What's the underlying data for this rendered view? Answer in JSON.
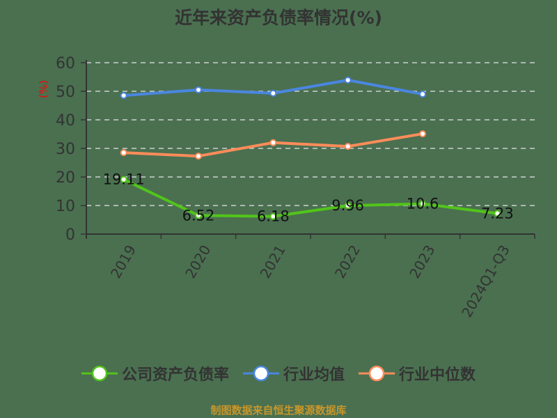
{
  "title": "近年来资产负债率情况(%)",
  "footer": "制图数据来自恒生聚源数据库",
  "colors": {
    "background": "#4a7050",
    "company": "#52c41a",
    "industry_avg": "#4a86e0",
    "industry_median": "#ff8c5a",
    "axis": "#333333",
    "grid": "#d0d0d0",
    "unit": "#ff0000",
    "footer": "#c8962a"
  },
  "legend": [
    {
      "label": "公司资产负债率",
      "color": "#52c41a"
    },
    {
      "label": "行业均值",
      "color": "#4a86e0"
    },
    {
      "label": "行业中位数",
      "color": "#ff8c5a"
    }
  ],
  "chart_data": {
    "type": "line",
    "title": "近年来资产负债率情况(%)",
    "xlabel": "",
    "ylabel": "(%)",
    "ylim": [
      0,
      60
    ],
    "yticks": [
      0,
      10,
      20,
      30,
      40,
      50,
      60
    ],
    "grid": true,
    "legend_position": "bottom",
    "categories": [
      "2019",
      "2020",
      "2021",
      "2022",
      "2023",
      "2024Q1-Q3"
    ],
    "series": [
      {
        "name": "公司资产负债率",
        "values": [
          19.11,
          6.52,
          6.18,
          9.96,
          10.6,
          7.23
        ],
        "labels": [
          "19.11",
          "6.52",
          "6.18",
          "9.96",
          "10.6",
          "7.23"
        ]
      },
      {
        "name": "行业均值",
        "values": [
          48.5,
          50.5,
          49.3,
          53.9,
          49.0,
          null
        ]
      },
      {
        "name": "行业中位数",
        "values": [
          28.5,
          27.3,
          32.0,
          30.7,
          35.1,
          null
        ]
      }
    ]
  }
}
